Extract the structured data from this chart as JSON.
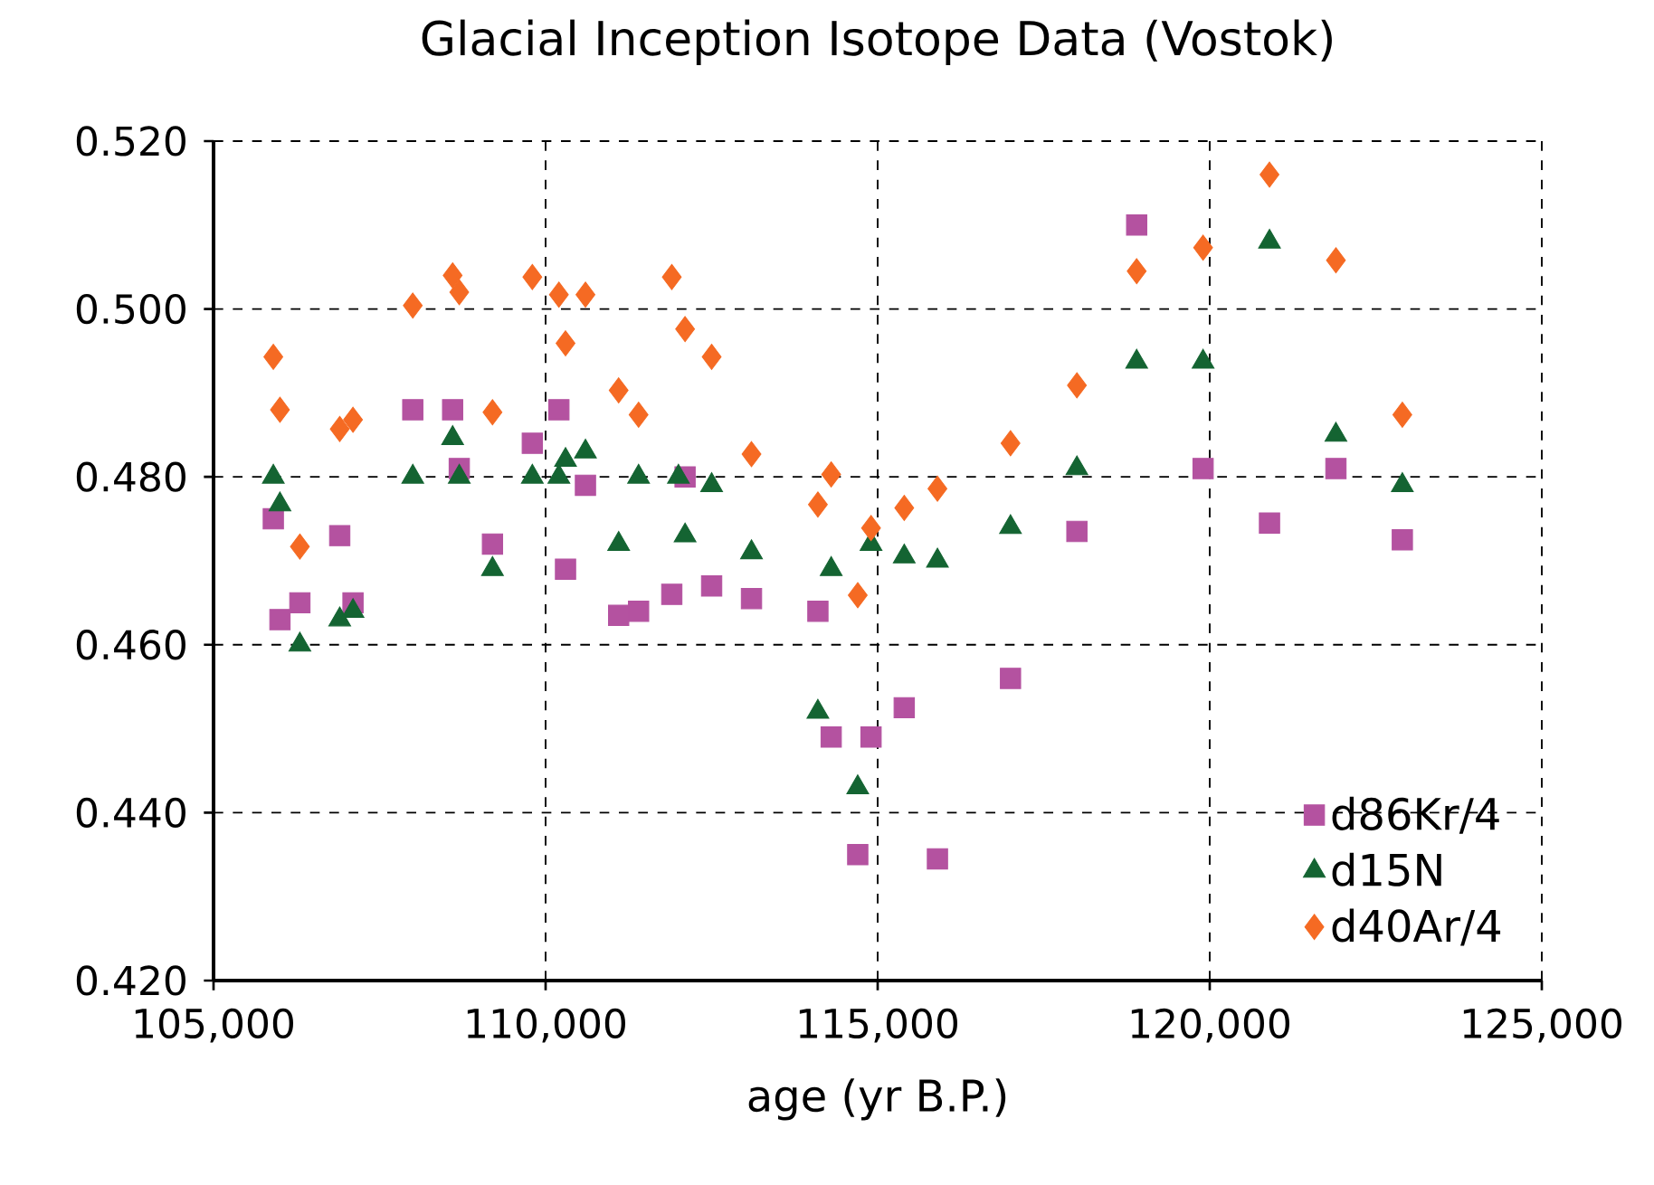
{
  "chart_data": {
    "type": "scatter",
    "title": "Glacial Inception Isotope Data (Vostok)",
    "xlabel": "age (yr B.P.)",
    "xlim": [
      105000,
      125000
    ],
    "ylim": [
      0.42,
      0.52
    ],
    "xticks": [
      {
        "value": 105000,
        "label": "105,000"
      },
      {
        "value": 110000,
        "label": "110,000"
      },
      {
        "value": 115000,
        "label": "115,000"
      },
      {
        "value": 120000,
        "label": "120,000"
      },
      {
        "value": 125000,
        "label": "125,000"
      }
    ],
    "yticks": [
      {
        "value": 0.42,
        "label": "0.420"
      },
      {
        "value": 0.44,
        "label": "0.440"
      },
      {
        "value": 0.46,
        "label": "0.460"
      },
      {
        "value": 0.48,
        "label": "0.480"
      },
      {
        "value": 0.5,
        "label": "0.500"
      },
      {
        "value": 0.52,
        "label": "0.520"
      }
    ],
    "grid": true,
    "legend": "bottom right",
    "x": [
      105900,
      106000,
      106300,
      106900,
      107100,
      108000,
      108600,
      108700,
      109200,
      109800,
      110200,
      110300,
      110600,
      111100,
      111400,
      111900,
      112100,
      112500,
      113100,
      114100,
      114300,
      114700,
      114900,
      115400,
      115900,
      117000,
      118000,
      118900,
      119900,
      120900,
      121900,
      122900
    ],
    "series": [
      {
        "name": "d86Kr/4",
        "color": "#b452a0",
        "marker": "square",
        "values": [
          0.475,
          0.463,
          0.465,
          0.473,
          0.465,
          0.488,
          0.488,
          0.481,
          0.472,
          0.484,
          0.488,
          0.469,
          0.479,
          0.4635,
          0.464,
          0.466,
          0.48,
          0.467,
          0.4655,
          0.464,
          0.449,
          0.435,
          0.449,
          0.4525,
          0.4345,
          0.456,
          0.4735,
          0.51,
          0.481,
          0.4745,
          0.481,
          0.4725
        ]
      },
      {
        "name": "d15N",
        "color": "#146432",
        "marker": "triangle",
        "x": [
          105900,
          106000,
          106300,
          106900,
          107100,
          108000,
          108600,
          108700,
          109200,
          109800,
          110200,
          110300,
          110600,
          111100,
          111400,
          112000,
          112100,
          112500,
          113100,
          114100,
          114300,
          114700,
          114900,
          115400,
          115900,
          117000,
          118000,
          118900,
          119900,
          120900,
          121900,
          122900
        ],
        "values": [
          0.48,
          0.4767,
          0.46,
          0.463,
          0.464,
          0.48,
          0.4846,
          0.48,
          0.469,
          0.48,
          0.48,
          0.482,
          0.483,
          0.472,
          0.48,
          0.48,
          0.473,
          0.479,
          0.471,
          0.452,
          0.469,
          0.443,
          0.472,
          0.4705,
          0.47,
          0.474,
          0.481,
          0.4937,
          0.4937,
          0.508,
          0.485,
          0.479
        ]
      },
      {
        "name": "d40Ar/4",
        "color": "#f56a23",
        "marker": "diamond",
        "values": [
          0.4943,
          0.488,
          0.4717,
          0.4857,
          0.4868,
          0.5004,
          0.504,
          0.502,
          0.4877,
          0.5038,
          0.5017,
          0.4959,
          0.5017,
          0.4903,
          0.4874,
          0.5038,
          0.4976,
          0.4943,
          0.4827,
          0.4767,
          0.4803,
          0.4659,
          0.4739,
          0.4763,
          0.4786,
          0.484,
          0.4909,
          0.5045,
          0.5073,
          0.516,
          0.5058,
          0.4874
        ]
      }
    ]
  }
}
